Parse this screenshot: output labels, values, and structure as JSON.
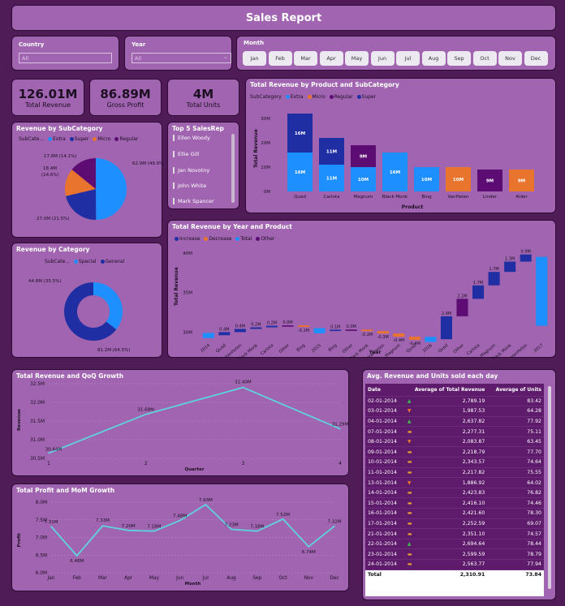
{
  "report_title": "Sales Report",
  "filters": {
    "country_label": "Country",
    "country_value": "All",
    "year_label": "Year",
    "year_value": "All",
    "month_label": "Month",
    "months": [
      "Jan",
      "Feb",
      "Mar",
      "Apr",
      "May",
      "Jun",
      "Jul",
      "Aug",
      "Sep",
      "Oct",
      "Nov",
      "Dec"
    ]
  },
  "kpis": [
    {
      "value": "126.01M",
      "label": "Total Revenue"
    },
    {
      "value": "86.89M",
      "label": "Gross Profit"
    },
    {
      "value": "4M",
      "label": "Total Units"
    }
  ],
  "top_reps": {
    "title": "Top 5 SalesRep",
    "names": [
      "Ellen Woody",
      "Ellie Gill",
      "Jan Novotny",
      "John White",
      "Mark Spancer"
    ]
  },
  "colors": {
    "extra": "#1e8fff",
    "super": "#1f2fa3",
    "micro": "#e8742d",
    "regular": "#5c0c72",
    "special": "#1e8fff",
    "general": "#1f2fa3",
    "line": "#5fd3dc"
  },
  "chart_data": [
    {
      "id": "revenue_by_subcategory",
      "type": "pie",
      "title": "Revenue by SubCategory",
      "legend_title": "SubCate...",
      "legend": [
        "Extra",
        "Super",
        "Micro",
        "Regular"
      ],
      "slices": [
        {
          "name": "Extra",
          "value": 62.9,
          "label": "62.9M (49.9%)"
        },
        {
          "name": "Super",
          "value": 27.0,
          "label": "27.0M (21.5%)"
        },
        {
          "name": "Micro",
          "value": 18.4,
          "label": "18.4M (14.6%)"
        },
        {
          "name": "Regular",
          "value": 17.8,
          "label": "17.8M (14.1%)"
        }
      ]
    },
    {
      "id": "revenue_by_category",
      "type": "pie",
      "title": "Revenue by Category",
      "legend_title": "SubCate...",
      "legend": [
        "Special",
        "General"
      ],
      "slices": [
        {
          "name": "General",
          "value": 81.2,
          "label": "81.2M (64.5%)"
        },
        {
          "name": "Special",
          "value": 44.8,
          "label": "44.8M (35.5%)"
        }
      ]
    },
    {
      "id": "revenue_by_product_subcategory",
      "type": "bar",
      "title": "Total Revenue by Product and SubCategory",
      "legend_title": "SubCategory",
      "legend": [
        "Extra",
        "Micro",
        "Regular",
        "Super"
      ],
      "xlabel": "Product",
      "ylabel": "Total Revenue",
      "yticks": [
        "30M",
        "20M",
        "10M",
        "0M"
      ],
      "ylim": [
        0,
        33
      ],
      "bars": [
        {
          "product": "Quad",
          "segments": [
            {
              "sub": "Extra",
              "value": 16,
              "label": "16M"
            },
            {
              "sub": "Super",
              "value": 16,
              "label": "16M"
            }
          ]
        },
        {
          "product": "Carlota",
          "segments": [
            {
              "sub": "Extra",
              "value": 11,
              "label": "11M"
            },
            {
              "sub": "Super",
              "value": 11,
              "label": "11M"
            }
          ]
        },
        {
          "product": "Magnum",
          "segments": [
            {
              "sub": "Extra",
              "value": 10,
              "label": "10M"
            },
            {
              "sub": "Regular",
              "value": 9,
              "label": "9M"
            }
          ]
        },
        {
          "product": "Black Monk",
          "segments": [
            {
              "sub": "Extra",
              "value": 16,
              "label": "16M"
            }
          ]
        },
        {
          "product": "Bing",
          "segments": [
            {
              "sub": "Extra",
              "value": 10,
              "label": "10M"
            }
          ]
        },
        {
          "product": "VanHelen",
          "segments": [
            {
              "sub": "Micro",
              "value": 10,
              "label": "10M"
            }
          ]
        },
        {
          "product": "Linder",
          "segments": [
            {
              "sub": "Regular",
              "value": 9,
              "label": "9M"
            }
          ]
        },
        {
          "product": "Alder",
          "segments": [
            {
              "sub": "Micro",
              "value": 9,
              "label": "9M"
            }
          ]
        }
      ]
    },
    {
      "id": "revenue_by_year_product",
      "type": "bar",
      "title": "Total Revenue by Year and Product",
      "legend": [
        "Increase",
        "Decrease",
        "Total",
        "Other"
      ],
      "xlabel": "Year",
      "ylabel": "Total Revenue",
      "yticks": [
        "40M",
        "35M",
        "30M"
      ],
      "ylim": [
        28.5,
        41
      ],
      "steps": [
        {
          "cat": "2014",
          "kind": "total",
          "label": ""
        },
        {
          "cat": "Quad",
          "kind": "inc",
          "label": "0.4M"
        },
        {
          "cat": "VanHelen",
          "kind": "inc",
          "label": "0.4M"
        },
        {
          "cat": "Black Monk",
          "kind": "inc",
          "label": "0.2M"
        },
        {
          "cat": "Carlota",
          "kind": "inc",
          "label": "0.2M"
        },
        {
          "cat": "Other",
          "kind": "other",
          "label": "0.0M"
        },
        {
          "cat": "Bing",
          "kind": "dec",
          "label": "-0.2M"
        },
        {
          "cat": "2015",
          "kind": "total",
          "label": ""
        },
        {
          "cat": "Bing",
          "kind": "inc",
          "label": "0.1M"
        },
        {
          "cat": "Other",
          "kind": "other",
          "label": "0.0M"
        },
        {
          "cat": "Black Monk",
          "kind": "dec",
          "label": "-0.2M"
        },
        {
          "cat": "VanHelen",
          "kind": "dec",
          "label": "-0.3M"
        },
        {
          "cat": "Magnum",
          "kind": "dec",
          "label": "-0.4M"
        },
        {
          "cat": "Quad",
          "kind": "dec",
          "label": "-0.4M"
        },
        {
          "cat": "2016",
          "kind": "total",
          "label": ""
        },
        {
          "cat": "Quad",
          "kind": "inc",
          "label": "2.9M"
        },
        {
          "cat": "Other",
          "kind": "other",
          "label": "2.2M"
        },
        {
          "cat": "Carlota",
          "kind": "inc",
          "label": "1.7M"
        },
        {
          "cat": "Magnum",
          "kind": "inc",
          "label": "1.7M"
        },
        {
          "cat": "Black Monk",
          "kind": "inc",
          "label": "1.3M"
        },
        {
          "cat": "VanHelen",
          "kind": "inc",
          "label": "0.9M"
        },
        {
          "cat": "2017",
          "kind": "total",
          "label": ""
        }
      ]
    },
    {
      "id": "revenue_qoq",
      "type": "line",
      "title": "Total Revenue and QoQ Growth",
      "xlabel": "Quarter",
      "ylabel": "Revenue",
      "yticks": [
        "32.5M",
        "32.0M",
        "31.5M",
        "31.0M",
        "30.5M"
      ],
      "ylim": [
        30.5,
        32.5
      ],
      "x": [
        "1",
        "2",
        "3",
        "4"
      ],
      "values": [
        30.64,
        31.68,
        32.4,
        31.29
      ],
      "labels": [
        "30.64M",
        "31.68M",
        "32.40M",
        "31.29M"
      ]
    },
    {
      "id": "profit_mom",
      "type": "line",
      "title": "Total Profit and MoM Growth",
      "xlabel": "Month",
      "ylabel": "Profit",
      "yticks": [
        "8.0M",
        "7.5M",
        "7.0M",
        "6.5M",
        "6.0M"
      ],
      "ylim": [
        6.0,
        8.0
      ],
      "x": [
        "Jan",
        "Feb",
        "Mar",
        "Apr",
        "May",
        "Jun",
        "Jul",
        "Aug",
        "Sep",
        "Oct",
        "Nov",
        "Dec"
      ],
      "values": [
        7.31,
        6.48,
        7.33,
        7.2,
        7.18,
        7.48,
        7.93,
        7.23,
        7.18,
        7.52,
        6.74,
        7.32
      ],
      "labels": [
        "7.31M",
        "6.48M",
        "7.33M",
        "7.20M",
        "7.18M",
        "7.48M",
        "7.93M",
        "7.23M",
        "7.18M",
        "7.52M",
        "6.74M",
        "7.32M"
      ]
    }
  ],
  "daily_table": {
    "title": "Avg. Revenue and Units sold each day",
    "columns": [
      "Date",
      "Average of Total Revenue",
      "Average of Units"
    ],
    "rows": [
      {
        "date": "02-01-2014",
        "trend": "up",
        "revenue": "2,789.19",
        "units": "83.42"
      },
      {
        "date": "03-01-2014",
        "trend": "down",
        "revenue": "1,987.53",
        "units": "64.28"
      },
      {
        "date": "04-01-2014",
        "trend": "up",
        "revenue": "2,637.82",
        "units": "77.92"
      },
      {
        "date": "07-01-2014",
        "trend": "flat",
        "revenue": "2,277.31",
        "units": "75.11"
      },
      {
        "date": "08-01-2014",
        "trend": "down",
        "revenue": "2,083.87",
        "units": "63.45"
      },
      {
        "date": "09-01-2014",
        "trend": "flat",
        "revenue": "2,218.79",
        "units": "77.70"
      },
      {
        "date": "10-01-2014",
        "trend": "flat",
        "revenue": "2,343.57",
        "units": "74.64"
      },
      {
        "date": "11-01-2014",
        "trend": "flat",
        "revenue": "2,217.82",
        "units": "75.55"
      },
      {
        "date": "13-01-2014",
        "trend": "down",
        "revenue": "1,886.92",
        "units": "64.02"
      },
      {
        "date": "14-01-2014",
        "trend": "flat",
        "revenue": "2,423.83",
        "units": "76.82"
      },
      {
        "date": "15-01-2014",
        "trend": "flat",
        "revenue": "2,416.10",
        "units": "74.46"
      },
      {
        "date": "16-01-2014",
        "trend": "flat",
        "revenue": "2,421.60",
        "units": "78.30"
      },
      {
        "date": "17-01-2014",
        "trend": "flat",
        "revenue": "2,252.59",
        "units": "69.07"
      },
      {
        "date": "21-01-2014",
        "trend": "flat",
        "revenue": "2,351.10",
        "units": "74.57"
      },
      {
        "date": "22-01-2014",
        "trend": "up",
        "revenue": "2,694.64",
        "units": "78.44"
      },
      {
        "date": "23-01-2014",
        "trend": "flat",
        "revenue": "2,599.59",
        "units": "78.79"
      },
      {
        "date": "24-01-2014",
        "trend": "flat",
        "revenue": "2,563.77",
        "units": "77.94"
      }
    ],
    "total": {
      "label": "Total",
      "revenue": "2,310.91",
      "units": "73.84"
    }
  }
}
